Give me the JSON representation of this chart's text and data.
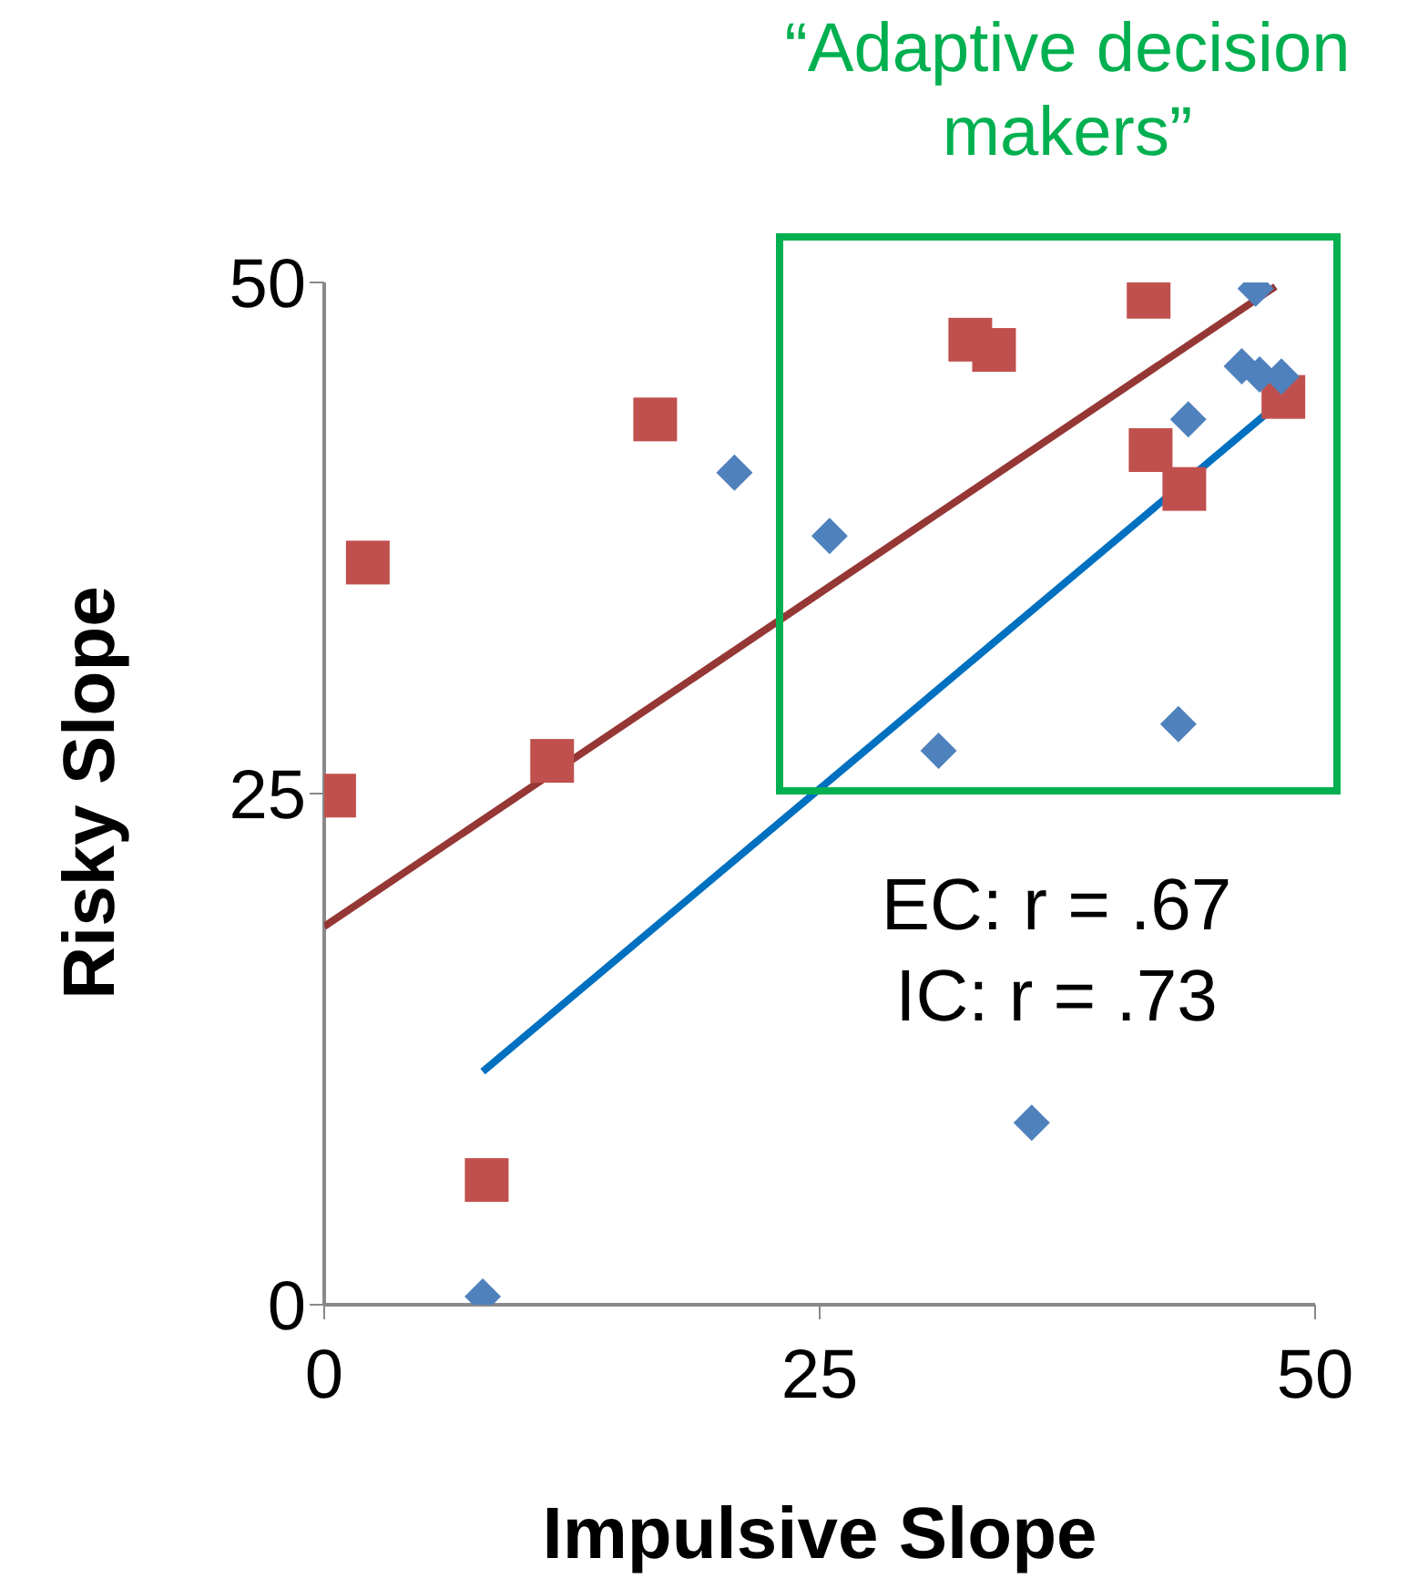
{
  "chart_data": {
    "type": "scatter",
    "xlabel": "Impulsive Slope",
    "ylabel": "Risky Slope",
    "xlim": [
      0,
      50
    ],
    "ylim": [
      0,
      50
    ],
    "xticks": [
      0,
      25,
      50
    ],
    "yticks": [
      0,
      25,
      50
    ],
    "grid": false,
    "annotations": [
      "“Adaptive decision makers”",
      "EC: r = .67",
      "IC: r = .73"
    ],
    "series": [
      {
        "color": "#4f81bd",
        "marker": "diamond",
        "x": [
          8.0,
          20.7,
          25.5,
          31.0,
          35.7,
          43.1,
          43.6,
          47.0,
          46.3,
          47.2,
          48.3
        ],
        "values": [
          0.4,
          40.7,
          37.6,
          27.1,
          8.9,
          28.4,
          43.3,
          49.7,
          45.9,
          45.5,
          45.4
        ]
      },
      {
        "color": "#c0504d",
        "marker": "square",
        "x": [
          0.5,
          2.2,
          11.5,
          16.7,
          8.2,
          32.6,
          33.8,
          41.6,
          41.7,
          43.4,
          48.4
        ],
        "values": [
          24.9,
          36.3,
          26.6,
          43.3,
          6.1,
          47.2,
          46.7,
          49.3,
          41.8,
          39.9,
          44.4
        ]
      },
      {
        "type": "line",
        "color": "#0070c0",
        "marker": "none",
        "x": [
          8.0,
          48.3
        ],
        "values": [
          11.4,
          44.2
        ]
      },
      {
        "type": "line",
        "color": "#953735",
        "marker": "none",
        "x": [
          0,
          48
        ],
        "values": [
          18.5,
          49.8
        ]
      }
    ]
  }
}
